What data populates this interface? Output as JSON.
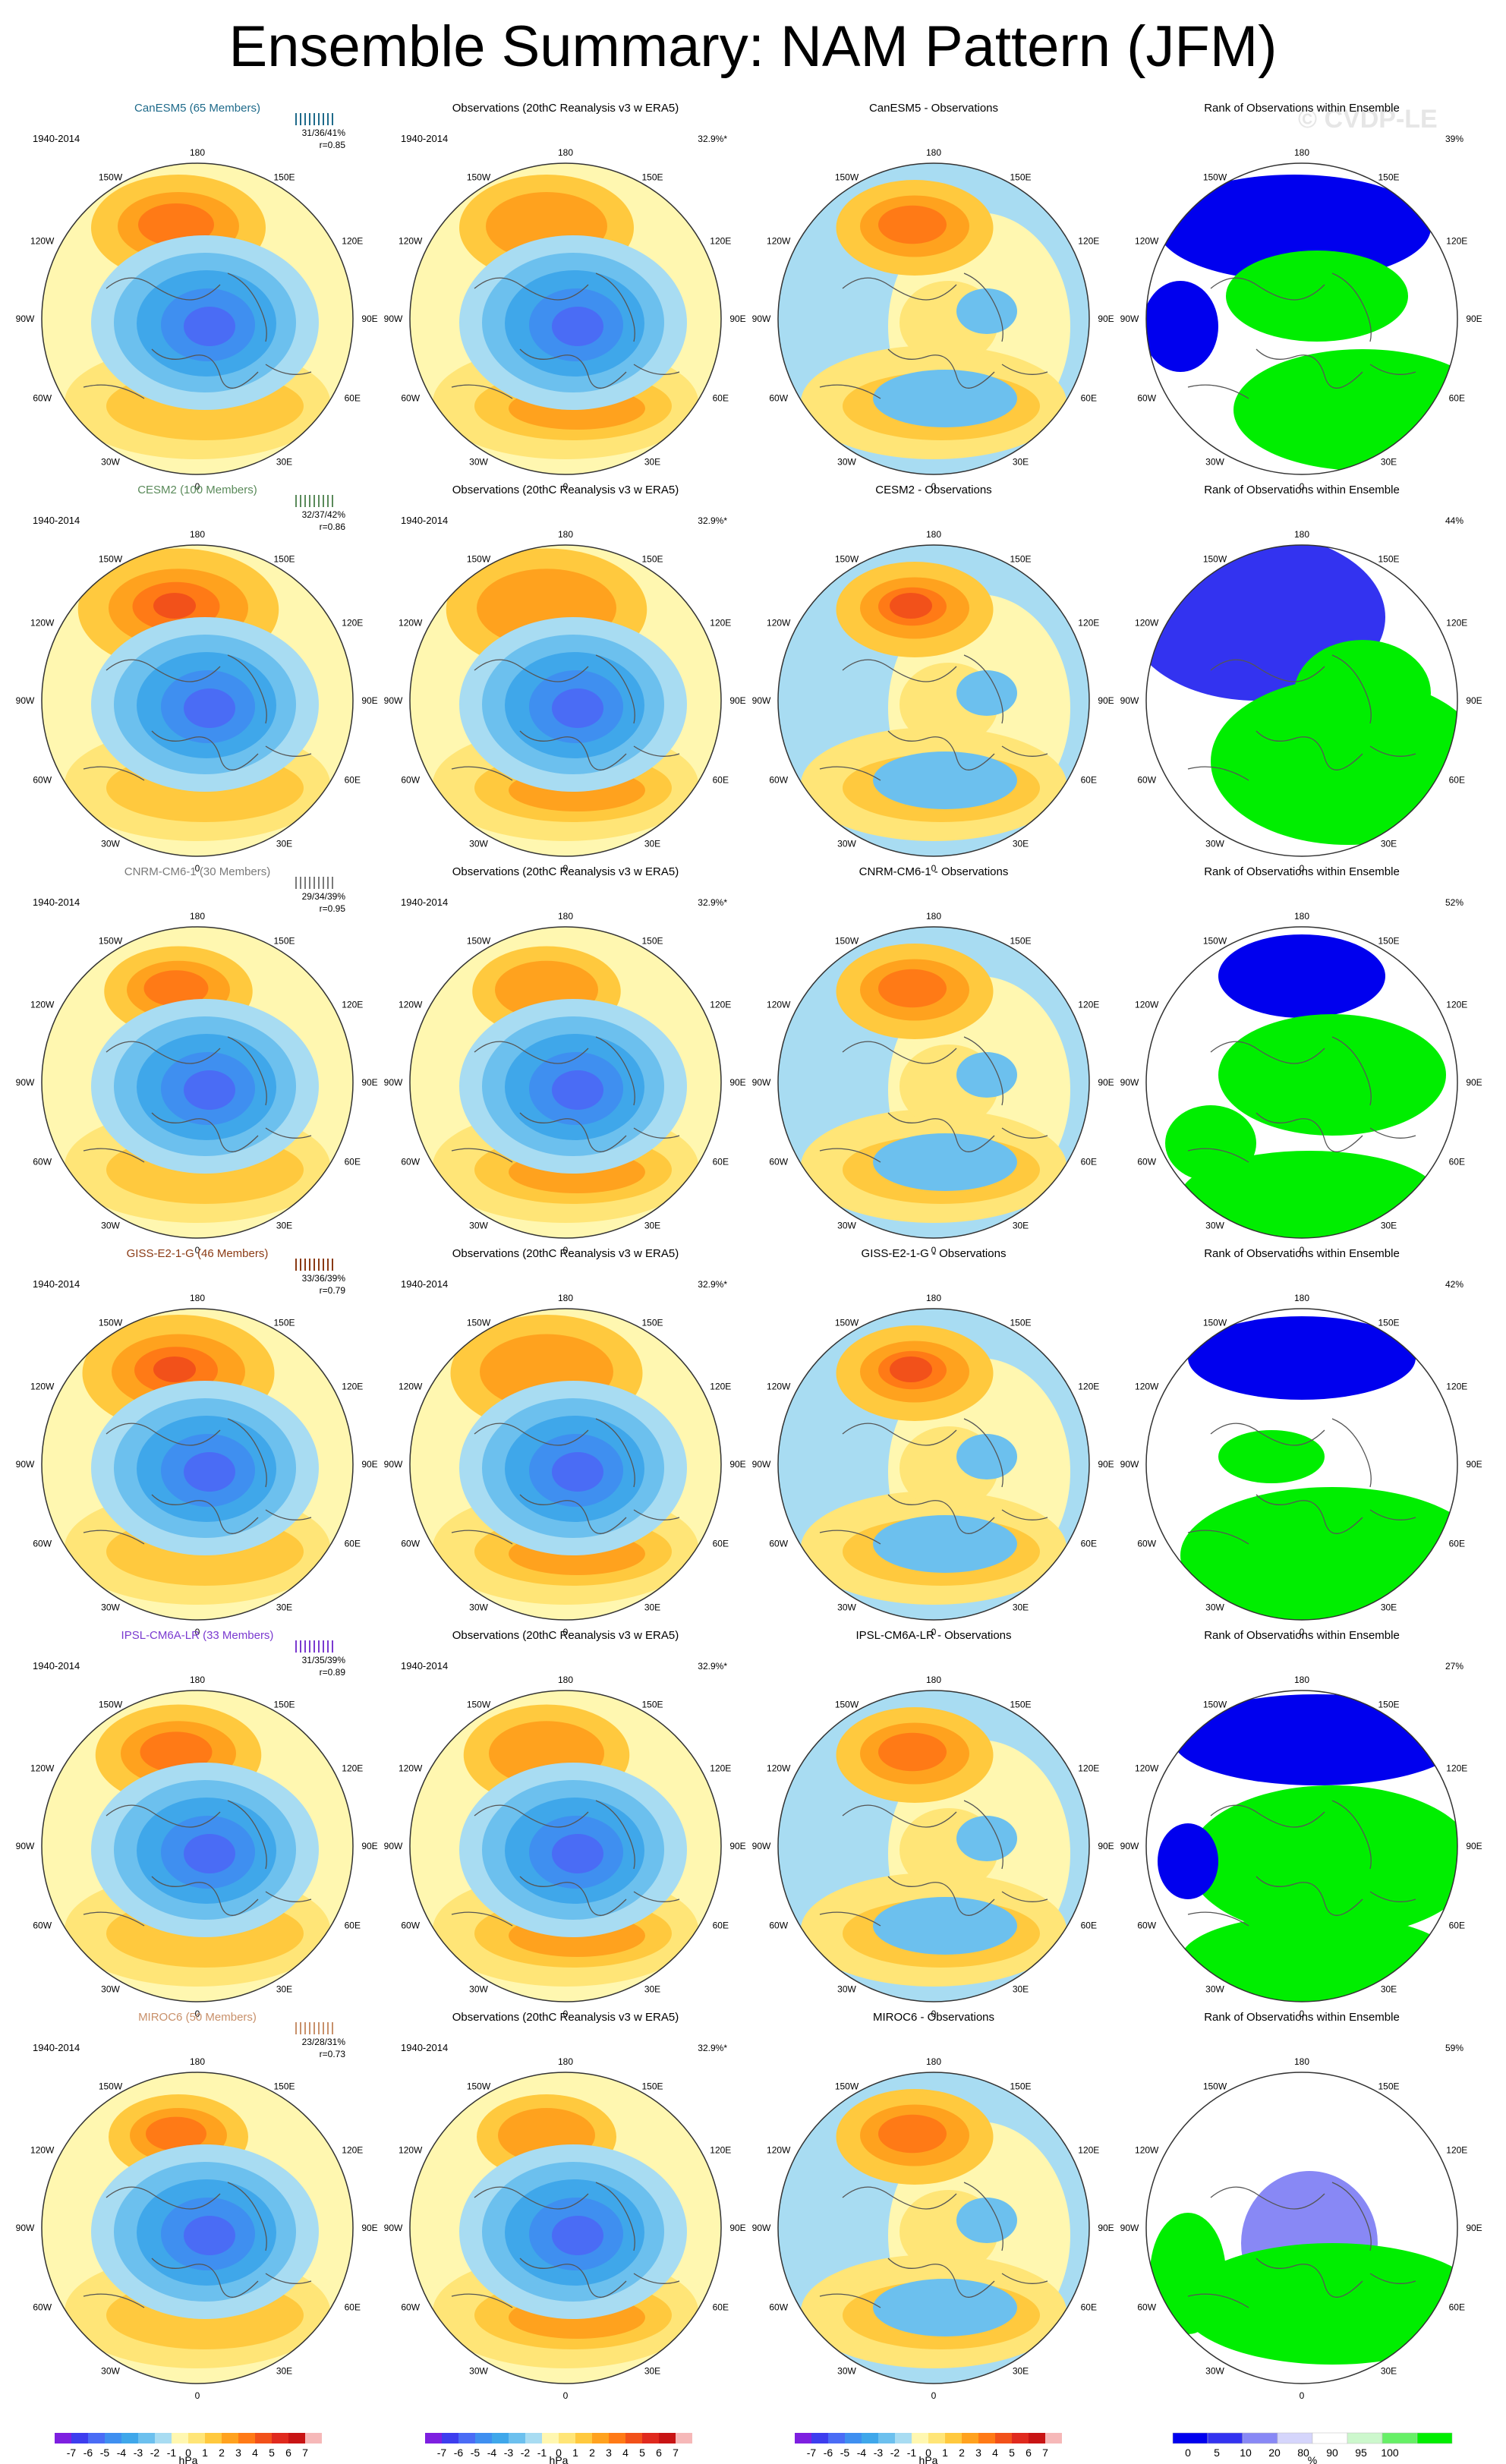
{
  "title": "Ensemble Summary: NAM Pattern (JFM)",
  "watermark": "© CVDP-LE",
  "period": "1940-2014",
  "obs_title": "Observations (20thC Reanalysis v3 w ERA5)",
  "obs_pct": "32.9%*",
  "rank_title": "Rank of Observations within Ensemble",
  "lon_labels": [
    "180",
    "150W",
    "150E",
    "120W",
    "120E",
    "90W",
    "90E",
    "60W",
    "60E",
    "30W",
    "30E",
    "0"
  ],
  "unit_hpa": "hPa",
  "unit_pct": "%",
  "colors": {
    "neg": [
      "#7d1fe0",
      "#3d3dee",
      "#4a6cf5",
      "#3f8ff0",
      "#3fa7ea",
      "#6cc0ee",
      "#a8dcf2"
    ],
    "pos": [
      "#fff7b0",
      "#ffe577",
      "#ffc93e",
      "#ffa21e",
      "#ff7a16",
      "#f2511a",
      "#e02a1e",
      "#c81414",
      "#f6b8b8"
    ],
    "rank": [
      "#0000ee",
      "#3333f0",
      "#8888f5",
      "#d5d5fb",
      "#ffffff",
      "#ccf7cc",
      "#66f066",
      "#00ee00"
    ]
  },
  "chart_data": [
    {
      "type": "contour-map-row",
      "model": "CanESM5 (65 Members)",
      "model_color": "#1e6a8a",
      "stats": "31/36/41%",
      "r": "r=0.85",
      "diff_title": "CanESM5 - Observations",
      "rank_pct": "39%"
    },
    {
      "type": "contour-map-row",
      "model": "CESM2 (100 Members)",
      "model_color": "#5a8a5a",
      "stats": "32/37/42%",
      "r": "r=0.86",
      "diff_title": "CESM2 - Observations",
      "rank_pct": "44%"
    },
    {
      "type": "contour-map-row",
      "model": "CNRM-CM6-1 (30 Members)",
      "model_color": "#7a7a7a",
      "stats": "29/34/39%",
      "r": "r=0.95",
      "diff_title": "CNRM-CM6-1 - Observations",
      "rank_pct": "52%"
    },
    {
      "type": "contour-map-row",
      "model": "GISS-E2-1-G (46 Members)",
      "model_color": "#8a3a14",
      "stats": "33/36/39%",
      "r": "r=0.79",
      "diff_title": "GISS-E2-1-G - Observations",
      "rank_pct": "42%"
    },
    {
      "type": "contour-map-row",
      "model": "IPSL-CM6A-LR (33 Members)",
      "model_color": "#7a3ad0",
      "stats": "31/35/39%",
      "r": "r=0.89",
      "diff_title": "IPSL-CM6A-LR - Observations",
      "rank_pct": "27%"
    },
    {
      "type": "contour-map-row",
      "model": "MIROC6 (50 Members)",
      "model_color": "#c8906a",
      "stats": "23/28/31%",
      "r": "r=0.73",
      "diff_title": "MIROC6 - Observations",
      "rank_pct": "59%"
    }
  ],
  "colorbar_hpa": {
    "labels": [
      "-7",
      "-6",
      "-5",
      "-4",
      "-3",
      "-2",
      "-1",
      "0",
      "1",
      "2",
      "3",
      "4",
      "5",
      "6",
      "7"
    ]
  },
  "colorbar_rank": {
    "labels": [
      "0",
      "5",
      "10",
      "20",
      "80",
      "90",
      "95",
      "100"
    ]
  }
}
